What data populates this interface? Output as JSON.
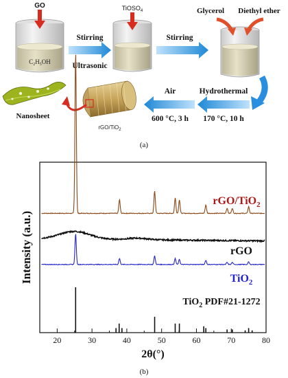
{
  "panel_a": {
    "caption": "(a)",
    "reagent_go": "GO",
    "reagent_tioso4": "TiOSO",
    "reagent_tioso4_sub": "4",
    "solvent_a": "C",
    "solvent_a_sub1": "2",
    "solvent_a_mid": "H",
    "solvent_a_sub2": "5",
    "solvent_a_end": "OH",
    "step1_top": "Stirring",
    "step1_bottom": "Ultrasonic",
    "step2": "Stirring",
    "reagent_glycerol": "Glycerol",
    "reagent_ether": "Diethyl ether",
    "step3_top": "Hydrothermal",
    "step3_bottom": "170 °C, 10 h",
    "step4_top": "Air",
    "step4_bottom": "600 °C, 3 h",
    "product_label": "rGO/TiO",
    "product_sub": "2",
    "nanosheet": "Nanosheet",
    "colors": {
      "arrow_blue": "#3a9be0",
      "red_arrow": "#d62d20",
      "nanosheet_green": "#9db41e"
    }
  },
  "panel_b": {
    "caption": "(b)"
  },
  "chart_data": {
    "type": "line",
    "xlabel": "2θ(°)",
    "ylabel": "Intensity (a.u.)",
    "xlim": [
      15,
      80
    ],
    "xticks": [
      20,
      30,
      40,
      50,
      60,
      70,
      80
    ],
    "yticks_shown": false,
    "series": [
      {
        "name": "rGO/TiO2",
        "label_main": "rGO/TiO",
        "label_sub": "2",
        "color": "#8b4513",
        "label_color": "#b01818",
        "baseline": 0.7,
        "broad": 0.0,
        "peaks": [
          [
            25.3,
            0.95
          ],
          [
            37.9,
            0.08
          ],
          [
            48.0,
            0.13
          ],
          [
            53.9,
            0.09
          ],
          [
            55.1,
            0.08
          ],
          [
            62.7,
            0.05
          ],
          [
            68.8,
            0.03
          ],
          [
            70.3,
            0.03
          ],
          [
            75.0,
            0.04
          ]
        ]
      },
      {
        "name": "rGO",
        "label_main": "rGO",
        "label_sub": "",
        "color": "#111111",
        "label_color": "#111111",
        "baseline": 0.55,
        "broad": 0.045,
        "peaks": []
      },
      {
        "name": "TiO2",
        "label_main": "TiO",
        "label_sub": "2",
        "color": "#2323c8",
        "label_color": "#2323c8",
        "baseline": 0.4,
        "broad": 0.0,
        "peaks": [
          [
            25.3,
            0.18
          ],
          [
            37.9,
            0.035
          ],
          [
            48.0,
            0.05
          ],
          [
            53.9,
            0.035
          ],
          [
            55.1,
            0.03
          ],
          [
            62.7,
            0.025
          ],
          [
            68.8,
            0.012
          ],
          [
            70.3,
            0.012
          ],
          [
            75.0,
            0.015
          ]
        ]
      }
    ],
    "reference": {
      "label": "TiO",
      "label_sub": "2",
      "label_rest": "PDF#21-1272",
      "sticks": [
        [
          25.3,
          1.0
        ],
        [
          36.9,
          0.1
        ],
        [
          37.8,
          0.2
        ],
        [
          38.6,
          0.1
        ],
        [
          48.0,
          0.35
        ],
        [
          53.9,
          0.2
        ],
        [
          55.1,
          0.2
        ],
        [
          62.1,
          0.14
        ],
        [
          62.7,
          0.1
        ],
        [
          68.8,
          0.07
        ],
        [
          70.3,
          0.07
        ],
        [
          74.0,
          0.05
        ],
        [
          75.0,
          0.1
        ],
        [
          76.0,
          0.05
        ]
      ]
    }
  }
}
